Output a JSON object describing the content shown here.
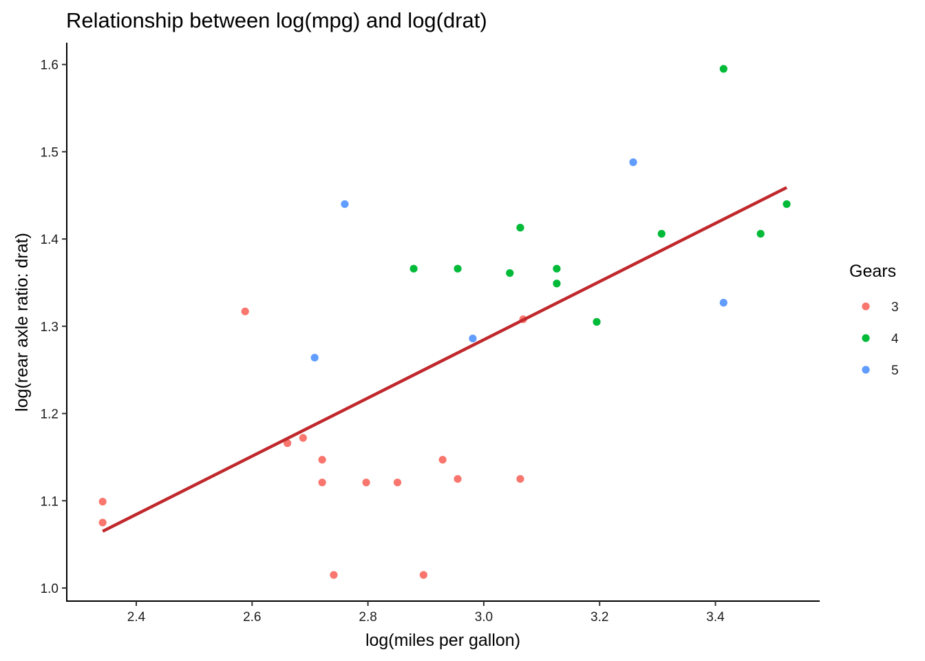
{
  "chart_data": {
    "type": "scatter",
    "title": "Relationship between log(mpg) and log(drat)",
    "xlabel": "log(miles per gallon)",
    "ylabel": "log(rear axle ratio: drat)",
    "xlim": [
      2.28,
      3.58
    ],
    "ylim": [
      0.985,
      1.625
    ],
    "xticks": [
      2.4,
      2.6,
      2.8,
      3.0,
      3.2,
      3.4
    ],
    "xtick_labels": [
      "2.4",
      "2.6",
      "2.8",
      "3.0",
      "3.2",
      "3.4"
    ],
    "yticks": [
      1.0,
      1.1,
      1.2,
      1.3,
      1.4,
      1.5,
      1.6
    ],
    "ytick_labels": [
      "1.0",
      "1.1",
      "1.2",
      "1.3",
      "1.4",
      "1.5",
      "1.6"
    ],
    "grid": false,
    "legend": {
      "title": "Gears",
      "position": "right"
    },
    "series": [
      {
        "name": "3",
        "color": "#F8766D",
        "points": [
          [
            2.342,
            1.099
          ],
          [
            2.342,
            1.075
          ],
          [
            2.588,
            1.317
          ],
          [
            2.661,
            1.166
          ],
          [
            2.688,
            1.172
          ],
          [
            2.721,
            1.147
          ],
          [
            2.721,
            1.121
          ],
          [
            2.741,
            1.015
          ],
          [
            2.797,
            1.121
          ],
          [
            2.851,
            1.121
          ],
          [
            2.896,
            1.015
          ],
          [
            2.929,
            1.147
          ],
          [
            2.955,
            1.125
          ],
          [
            3.063,
            1.125
          ],
          [
            3.068,
            1.308
          ]
        ]
      },
      {
        "name": "4",
        "color": "#00BA38",
        "points": [
          [
            2.879,
            1.366
          ],
          [
            2.955,
            1.366
          ],
          [
            3.045,
            1.361
          ],
          [
            3.063,
            1.413
          ],
          [
            3.126,
            1.366
          ],
          [
            3.126,
            1.349
          ],
          [
            3.195,
            1.305
          ],
          [
            3.307,
            1.406
          ],
          [
            3.414,
            1.595
          ],
          [
            3.478,
            1.406
          ],
          [
            3.523,
            1.44
          ]
        ]
      },
      {
        "name": "5",
        "color": "#619CFF",
        "points": [
          [
            2.708,
            1.264
          ],
          [
            2.76,
            1.44
          ],
          [
            2.981,
            1.286
          ],
          [
            3.258,
            1.488
          ],
          [
            3.414,
            1.327
          ]
        ]
      }
    ],
    "trend_line": {
      "type": "linear fit",
      "color": "#C0282C",
      "from": [
        2.342,
        1.065
      ],
      "to": [
        3.523,
        1.459
      ]
    }
  }
}
